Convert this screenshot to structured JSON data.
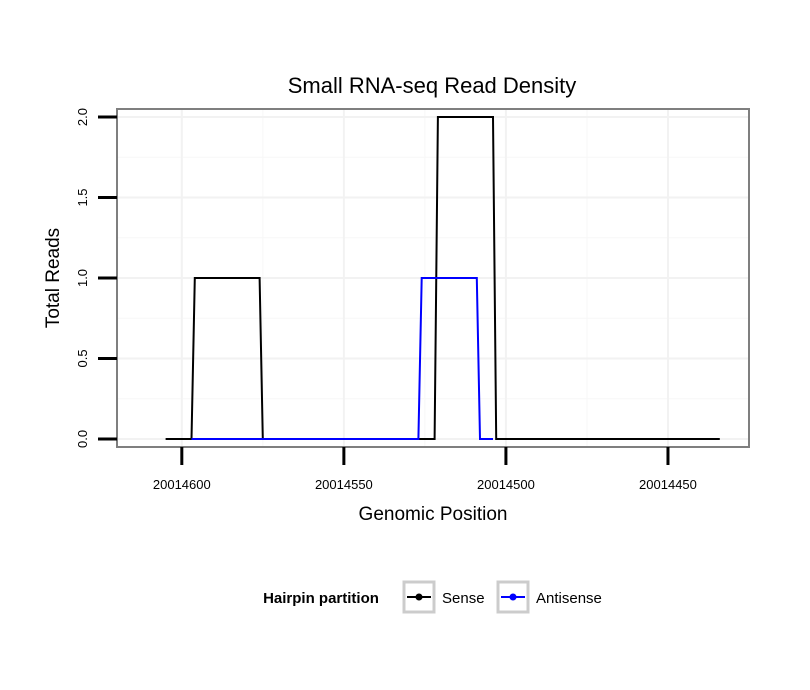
{
  "chart_data": {
    "type": "line",
    "title": "Small RNA-seq Read Density",
    "xlabel": "Genomic Position",
    "ylabel": "Total Reads",
    "x_reversed": true,
    "xlim": [
      20014620,
      20014425
    ],
    "ylim": [
      -0.05,
      2.05
    ],
    "xticks": [
      20014600,
      20014550,
      20014500,
      20014450
    ],
    "xtick_labels": [
      "20014600",
      "20014550",
      "20014500",
      "20014450"
    ],
    "yticks": [
      0,
      0.5,
      1,
      1.5,
      2
    ],
    "ytick_labels": [
      "0.0",
      "0.5",
      "1.0",
      "1.5",
      "2.0"
    ],
    "grid": true,
    "legend": {
      "title": "Hairpin partition",
      "placement": "bottom",
      "entries": [
        "Sense",
        "Antisense"
      ]
    },
    "series": [
      {
        "name": "Sense",
        "color": "#000000",
        "x": [
          20014605,
          20014597,
          20014596,
          20014576,
          20014575,
          20014522,
          20014521,
          20014504,
          20014503,
          20014434
        ],
        "y": [
          0,
          0,
          1,
          1,
          0,
          0,
          2,
          2,
          0,
          0
        ]
      },
      {
        "name": "Antisense",
        "color": "#0000ff",
        "x": [
          20014597,
          20014527,
          20014526,
          20014509,
          20014508,
          20014504
        ],
        "y": [
          0,
          0,
          1,
          1,
          0,
          0
        ]
      }
    ]
  }
}
